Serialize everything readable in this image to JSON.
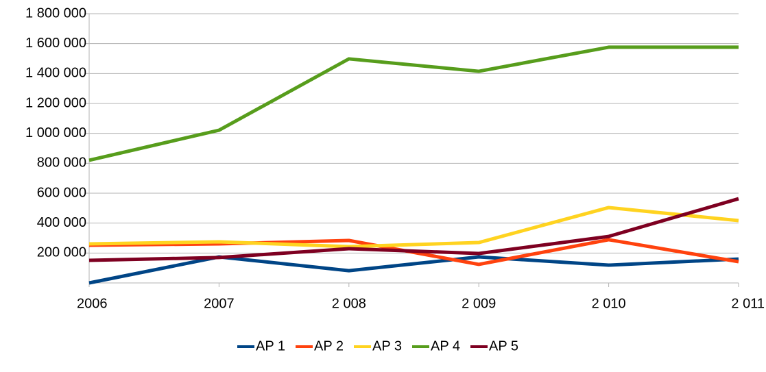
{
  "chart_data": {
    "type": "line",
    "categories": [
      "2006",
      "2007",
      "2 008",
      "2 009",
      "2 010",
      "2 011"
    ],
    "series": [
      {
        "name": "AP 1",
        "color": "#004586",
        "values": [
          0,
          174000,
          82000,
          174000,
          119000,
          160000
        ]
      },
      {
        "name": "AP 2",
        "color": "#ff420e",
        "values": [
          252000,
          261000,
          284000,
          124000,
          289000,
          142000
        ]
      },
      {
        "name": "AP 3",
        "color": "#ffd320",
        "values": [
          261000,
          275000,
          243000,
          270000,
          504000,
          417000
        ]
      },
      {
        "name": "AP 4",
        "color": "#579d1c",
        "values": [
          820000,
          1021000,
          1498000,
          1415000,
          1576000,
          1576000
        ]
      },
      {
        "name": "AP 5",
        "color": "#7e0021",
        "values": [
          151000,
          170000,
          229000,
          197000,
          311000,
          563000
        ]
      }
    ],
    "ylim": [
      0,
      1800000
    ],
    "yticks": [
      {
        "value": 200000,
        "label": "200 000"
      },
      {
        "value": 400000,
        "label": "400 000"
      },
      {
        "value": 600000,
        "label": "600 000"
      },
      {
        "value": 800000,
        "label": "800 000"
      },
      {
        "value": 1000000,
        "label": "1 000 000"
      },
      {
        "value": 1200000,
        "label": "1 200 000"
      },
      {
        "value": 1400000,
        "label": "1 400 000"
      },
      {
        "value": 1600000,
        "label": "1 600 000"
      },
      {
        "value": 1800000,
        "label": "1 800 000"
      }
    ],
    "grid": true,
    "legend": "bottom"
  }
}
